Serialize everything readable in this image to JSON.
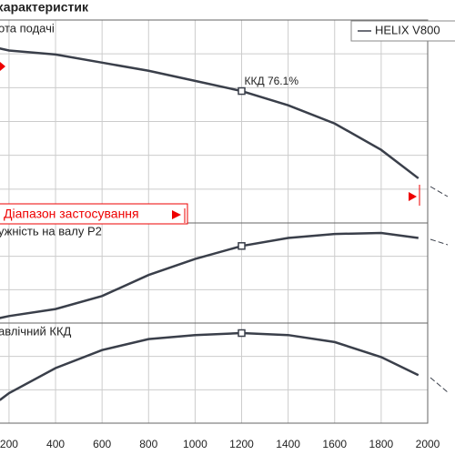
{
  "chart_data": [
    {
      "type": "line",
      "title": "характеристик",
      "ylabel": "ота подачі",
      "ylim": [
        0,
        100
      ],
      "x": [
        160,
        200,
        400,
        600,
        800,
        1000,
        1200,
        1400,
        1600,
        1800,
        1960
      ],
      "series": [
        {
          "name": "HELIX V800",
          "color": "#3a3f4a",
          "values": [
            86,
            85,
            83,
            79,
            75,
            70,
            65,
            58,
            49,
            36,
            22
          ]
        }
      ],
      "marker_x": 1200,
      "annotation": "ККД  76.1%",
      "range_label": "Діапазон застосування"
    },
    {
      "type": "line",
      "ylabel": "ужність на валу  P2",
      "ylim": [
        0,
        100
      ],
      "x": [
        160,
        200,
        400,
        600,
        800,
        1000,
        1200,
        1400,
        1600,
        1800,
        1960
      ],
      "series": [
        {
          "color": "#3a3f4a",
          "values": [
            5,
            7,
            14,
            27,
            48,
            64,
            77,
            85,
            89,
            90,
            85
          ]
        }
      ],
      "marker_x": 1200
    },
    {
      "type": "line",
      "ylabel": "авлічний ККД",
      "ylim": [
        0,
        100
      ],
      "x": [
        160,
        200,
        400,
        600,
        800,
        1000,
        1200,
        1400,
        1600,
        1800,
        1960
      ],
      "series": [
        {
          "color": "#3a3f4a",
          "values": [
            23,
            30,
            55,
            73,
            84,
            88,
            90,
            88,
            81,
            66,
            48
          ]
        }
      ],
      "marker_x": 1200,
      "xlim": [
        0,
        2000
      ],
      "xticks": [
        200,
        400,
        600,
        800,
        1000,
        1200,
        1400,
        1600,
        1800,
        2000
      ]
    }
  ]
}
